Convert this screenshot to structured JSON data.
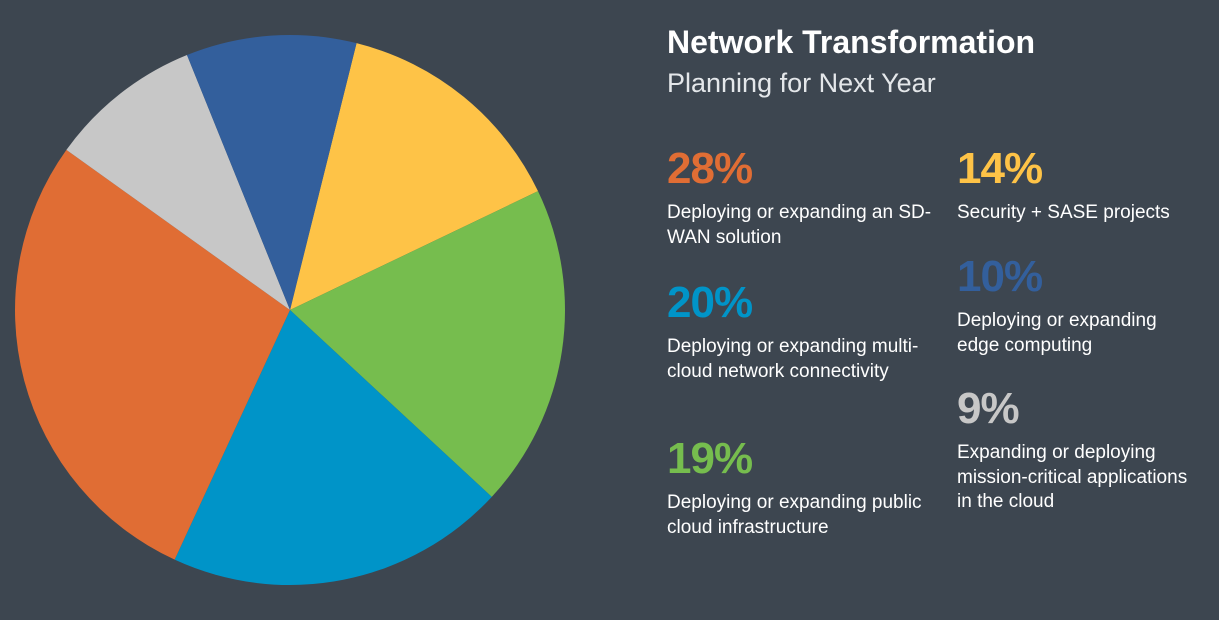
{
  "header": {
    "title": "Network Transformation",
    "subtitle": "Planning for Next Year"
  },
  "chart_data": {
    "type": "pie",
    "title": "Network Transformation",
    "subtitle": "Planning for Next Year",
    "slices": [
      {
        "label": "Deploying or expanding an SD-WAN solution",
        "value_label": "28%",
        "value": 28,
        "color": "#e06d34"
      },
      {
        "label": "Deploying or expanding multi-cloud network connectivity",
        "value_label": "20%",
        "value": 20,
        "color": "#0094c8"
      },
      {
        "label": "Deploying or expanding public cloud infrastructure",
        "value_label": "19%",
        "value": 19,
        "color": "#76bd4e"
      },
      {
        "label": "Security + SASE projects",
        "value_label": "14%",
        "value": 14,
        "color": "#fec347"
      },
      {
        "label": "Deploying or expanding edge computing",
        "value_label": "10%",
        "value": 10,
        "color": "#335f9c"
      },
      {
        "label": "Expanding or deploying mission-critical applications in the cloud",
        "value_label": "9%",
        "value": 9,
        "color": "#c7c7c7"
      }
    ]
  }
}
